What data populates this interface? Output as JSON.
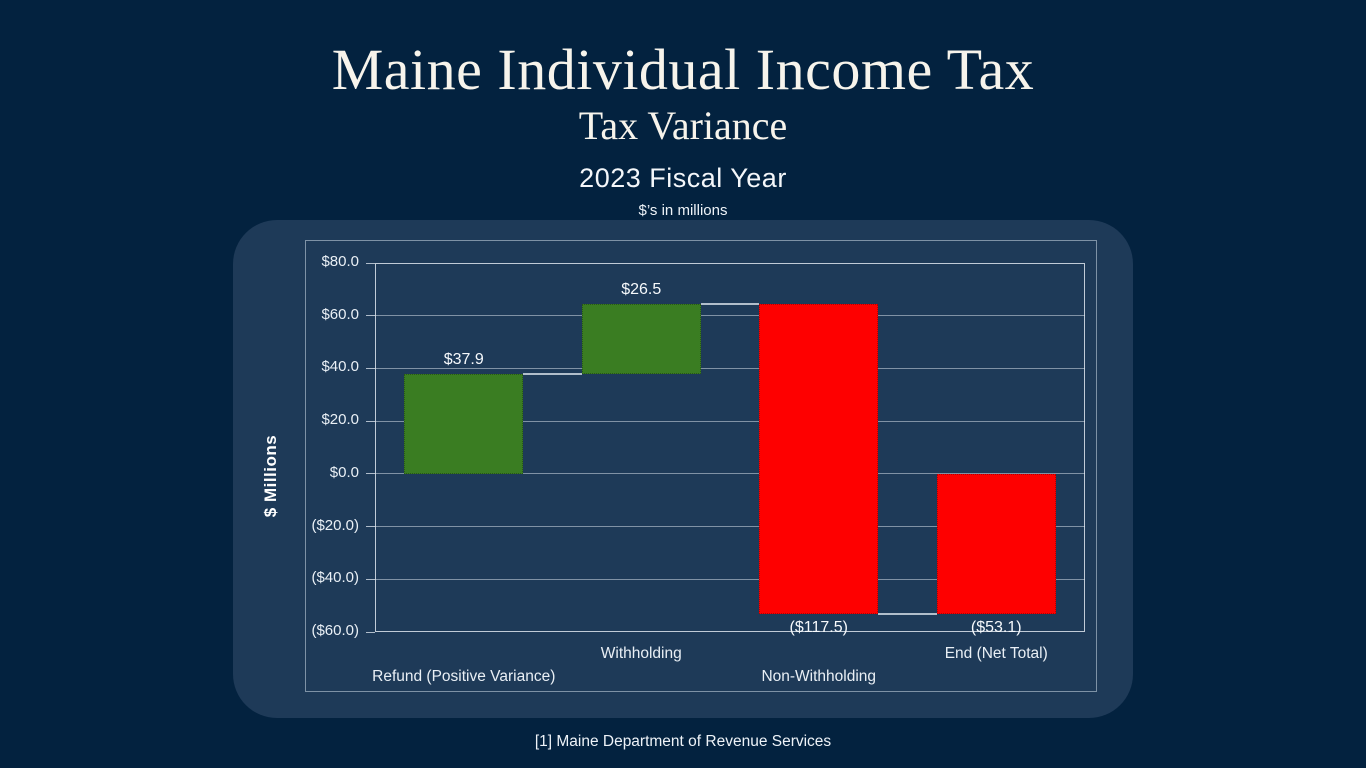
{
  "header": {
    "title": "Maine Individual Income Tax",
    "subtitle": "Tax Variance",
    "period": "2023 Fiscal Year",
    "units_note": "$’s in millions"
  },
  "footer": {
    "source": "[1] Maine Department of Revenue Services"
  },
  "chart_data": {
    "type": "bar",
    "subtype": "waterfall",
    "title": "Maine Individual Income Tax — Tax Variance, 2023 Fiscal Year ($’s in millions)",
    "categories": [
      "Refund (Positive Variance)",
      "Withholding",
      "Non-Withholding",
      "End (Net Total)"
    ],
    "steps": [
      {
        "category": "Refund (Positive Variance)",
        "value": 37.9,
        "kind": "delta",
        "label": "$37.9"
      },
      {
        "category": "Withholding",
        "value": 26.5,
        "kind": "delta",
        "label": "$26.5"
      },
      {
        "category": "Non-Withholding",
        "value": -117.5,
        "kind": "delta",
        "label": "($117.5)"
      },
      {
        "category": "End (Net Total)",
        "value": -53.1,
        "kind": "total",
        "label": "($53.1)"
      }
    ],
    "cumulative_levels": [
      37.9,
      64.4,
      -53.1,
      -53.1
    ],
    "ylabel": "$ Millions",
    "xlabel": "",
    "ylim": [
      -60,
      80
    ],
    "ytick_step": 20,
    "yticks": [
      {
        "value": 80,
        "label": "$80.0"
      },
      {
        "value": 60,
        "label": "$60.0"
      },
      {
        "value": 40,
        "label": "$40.0"
      },
      {
        "value": 20,
        "label": "$20.0"
      },
      {
        "value": 0,
        "label": "$0.0"
      },
      {
        "value": -20,
        "label": "($20.0)"
      },
      {
        "value": -40,
        "label": "($40.0)"
      },
      {
        "value": -60,
        "label": "($60.0)"
      }
    ],
    "grid": "horizontal",
    "legend": "none",
    "colors": {
      "increase": "#3a7d22",
      "decrease": "#fe0000"
    }
  }
}
